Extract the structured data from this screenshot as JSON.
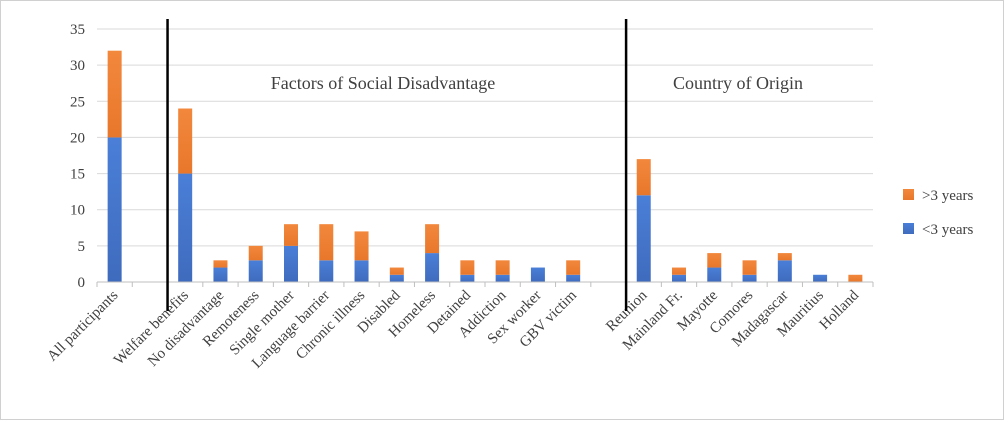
{
  "chart_data": {
    "type": "bar",
    "stacked": true,
    "categories": [
      "All participants",
      "",
      "Welfare benefits",
      "No disadvantage",
      "Remoteness",
      "Single mother",
      "Language barrier",
      "Chronic illness",
      "Disabled",
      "Homeless",
      "Detained",
      "Addiction",
      "Sex worker",
      "GBV victim",
      "",
      "Reunion",
      "Mainland Fr.",
      "Mayotte",
      "Comores",
      "Madagascar",
      "Mauritius",
      "Holland"
    ],
    "series": [
      {
        "name": "<3 years",
        "color": "#4472C4",
        "values": [
          20,
          null,
          15,
          2,
          3,
          5,
          3,
          3,
          1,
          4,
          1,
          1,
          2,
          1,
          null,
          12,
          1,
          2,
          1,
          3,
          1,
          0
        ]
      },
      {
        "name": ">3 years",
        "color": "#ED7D31",
        "values": [
          12,
          null,
          9,
          1,
          2,
          3,
          5,
          4,
          1,
          4,
          2,
          2,
          0,
          2,
          null,
          5,
          1,
          2,
          2,
          1,
          0,
          1
        ]
      }
    ],
    "ylim": [
      0,
      35
    ],
    "yticks": [
      0,
      5,
      10,
      15,
      20,
      25,
      30,
      35
    ],
    "grid": true,
    "legend_position": "right",
    "group_labels": [
      "Factors of Social Disadvantage",
      "Country of Origin"
    ],
    "title": "",
    "xlabel": "",
    "ylabel": ""
  }
}
